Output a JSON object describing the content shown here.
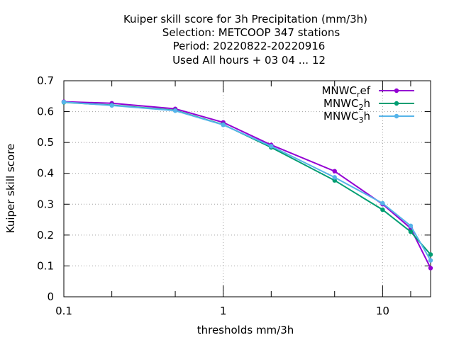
{
  "chart_data": {
    "type": "line",
    "title_lines": [
      "Kuiper skill score  for 3h Precipitation (mm/3h)",
      "Selection: METCOOP    347 stations",
      "Period: 20220822-20220916",
      "Used  All hours  + 03 04 ... 12"
    ],
    "xlabel": "thresholds mm/3h",
    "ylabel": "Kuiper skill score",
    "x_scale": "log",
    "xlim": [
      0.1,
      20
    ],
    "ylim": [
      0,
      0.7
    ],
    "x_ticks": [
      {
        "value": 0.1,
        "label": "0.1"
      },
      {
        "value": 1,
        "label": "1"
      },
      {
        "value": 10,
        "label": "10"
      }
    ],
    "x_minor_ticks": [
      0.2,
      0.5,
      2,
      5,
      15
    ],
    "y_ticks": [
      {
        "value": 0,
        "label": "0"
      },
      {
        "value": 0.1,
        "label": "0.1"
      },
      {
        "value": 0.2,
        "label": "0.2"
      },
      {
        "value": 0.3,
        "label": "0.3"
      },
      {
        "value": 0.4,
        "label": "0.4"
      },
      {
        "value": 0.5,
        "label": "0.5"
      },
      {
        "value": 0.6,
        "label": "0.6"
      },
      {
        "value": 0.7,
        "label": "0.7"
      }
    ],
    "grid": true,
    "legend_position": "top-right",
    "x": [
      0.1,
      0.2,
      0.5,
      1,
      2,
      5,
      10,
      15,
      20
    ],
    "series": [
      {
        "name_base": "MNWC",
        "name_sub": "r",
        "name_tail": "ef",
        "color": "#9400d3",
        "values": [
          0.632,
          0.627,
          0.609,
          0.565,
          0.492,
          0.407,
          0.3,
          0.222,
          0.093
        ]
      },
      {
        "name_base": "MNWC",
        "name_sub": "2",
        "name_tail": "h",
        "color": "#009e73",
        "values": [
          0.63,
          0.621,
          0.604,
          0.558,
          0.484,
          0.377,
          0.282,
          0.211,
          0.137
        ]
      },
      {
        "name_base": "MNWC",
        "name_sub": "3",
        "name_tail": "h",
        "color": "#56b4e9",
        "values": [
          0.631,
          0.62,
          0.603,
          0.557,
          0.488,
          0.387,
          0.303,
          0.23,
          0.118
        ]
      }
    ]
  }
}
